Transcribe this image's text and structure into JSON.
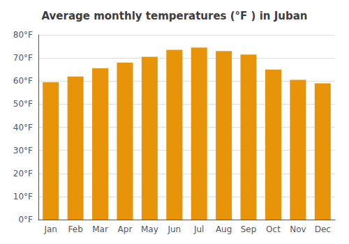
{
  "chart_data": {
    "type": "bar",
    "title": "Average monthly temperatures (°F ) in Juban",
    "categories": [
      "Jan",
      "Feb",
      "Mar",
      "Apr",
      "May",
      "Jun",
      "Jul",
      "Aug",
      "Sep",
      "Oct",
      "Nov",
      "Dec"
    ],
    "values": [
      59.5,
      62.0,
      65.5,
      68.0,
      70.5,
      73.5,
      74.5,
      73.0,
      71.5,
      65.0,
      60.5,
      59.0
    ],
    "color": "#E8940A",
    "ylim": [
      0,
      80
    ],
    "yticks": [
      {
        "value": 0,
        "label": "0°F"
      },
      {
        "value": 10,
        "label": "10°F"
      },
      {
        "value": 20,
        "label": "20°F"
      },
      {
        "value": 30,
        "label": "30°F"
      },
      {
        "value": 40,
        "label": "40°F"
      },
      {
        "value": 50,
        "label": "50°F"
      },
      {
        "value": 60,
        "label": "60°F"
      },
      {
        "value": 70,
        "label": "70°F"
      },
      {
        "value": 80,
        "label": "80°F"
      }
    ],
    "grid": true
  }
}
